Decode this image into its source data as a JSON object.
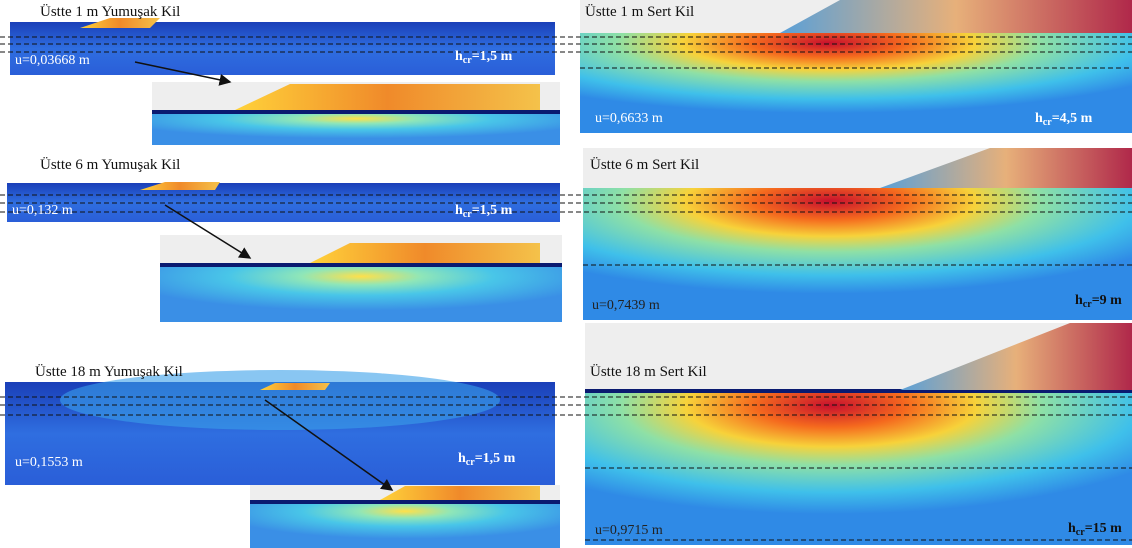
{
  "panels": [
    {
      "title": "Üstte 1 m Yumuşak Kil",
      "displacement": "u=0,03668 m",
      "hcr": {
        "symbol": "h",
        "subscript": "cr",
        "value": "=1,5 m"
      }
    },
    {
      "title": "Üstte 1 m Sert Kil",
      "displacement": "u=0,6633 m",
      "hcr": {
        "symbol": "h",
        "subscript": "cr",
        "value": "=4,5 m"
      }
    },
    {
      "title": "Üstte 6 m Yumuşak Kil",
      "displacement": "u=0,132 m",
      "hcr": {
        "symbol": "h",
        "subscript": "cr",
        "value": "=1,5 m"
      }
    },
    {
      "title": "Üstte 6 m Sert Kil",
      "displacement": "u=0,7439 m",
      "hcr": {
        "symbol": "h",
        "subscript": "cr",
        "value": "=9 m"
      }
    },
    {
      "title": "Üstte 18 m Yumuşak Kil",
      "displacement": "u=0,1553 m",
      "hcr": {
        "symbol": "h",
        "subscript": "cr",
        "value": "=1,5 m"
      }
    },
    {
      "title": "Üstte 18 m Sert Kil",
      "displacement": "u=0,9715 m",
      "hcr": {
        "symbol": "h",
        "subscript": "cr",
        "value": "=15 m"
      }
    }
  ]
}
